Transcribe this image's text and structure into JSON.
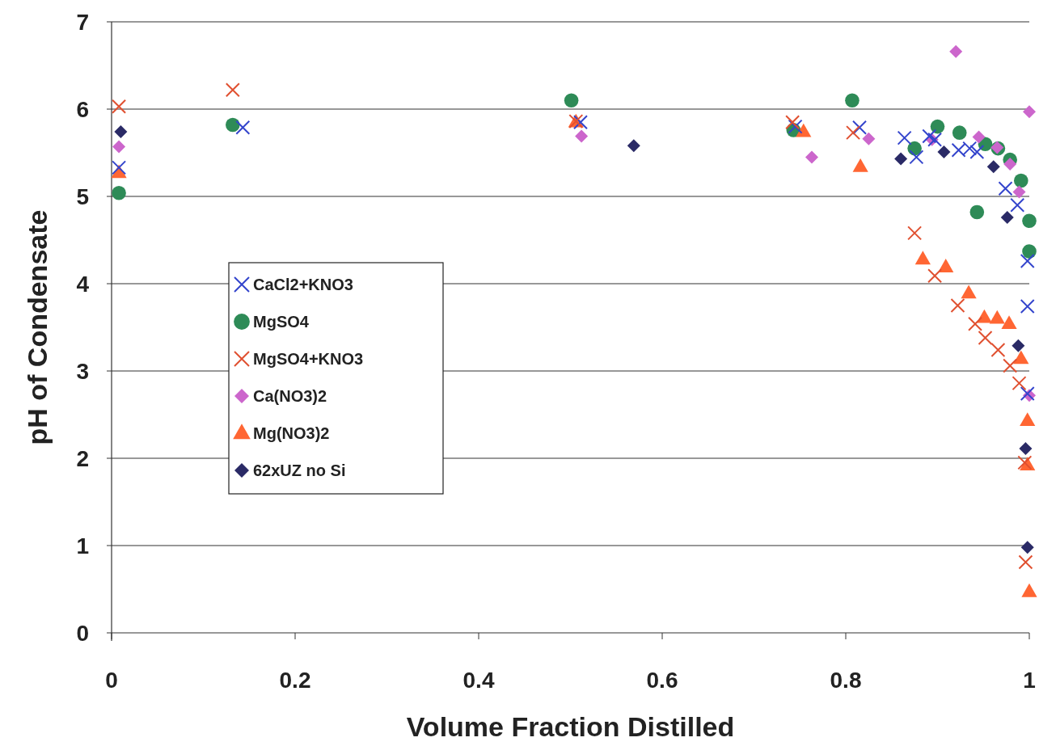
{
  "chart_data": {
    "type": "scatter",
    "xlabel": "Volume Fraction Distilled",
    "ylabel": "pH of Condensate",
    "xlim": [
      0,
      1
    ],
    "ylim": [
      0,
      7
    ],
    "xticks": [
      0,
      0.2,
      0.4,
      0.6,
      0.8,
      1
    ],
    "yticks": [
      0,
      1,
      2,
      3,
      4,
      5,
      6,
      7
    ],
    "grid": "y",
    "legend": "left",
    "series": [
      {
        "name": "CaCl2+KNO3",
        "color": "#3344cc",
        "marker": "cross",
        "x": [
          0.008,
          0.143,
          0.511,
          0.745,
          0.815,
          0.864,
          0.877,
          0.891,
          0.897,
          0.923,
          0.935,
          0.943,
          0.974,
          0.987,
          0.998,
          0.998,
          0.998
        ],
        "values": [
          5.33,
          5.79,
          5.85,
          5.8,
          5.79,
          5.67,
          5.45,
          5.69,
          5.65,
          5.53,
          5.55,
          5.51,
          5.09,
          4.9,
          4.26,
          3.74,
          2.74
        ]
      },
      {
        "name": "MgSO4",
        "color": "#2e8b57",
        "marker": "circle",
        "x": [
          0.008,
          0.132,
          0.501,
          0.743,
          0.807,
          0.875,
          0.9,
          0.924,
          0.952,
          0.966,
          0.979,
          0.991,
          0.943,
          1.0,
          1.0
        ],
        "values": [
          5.04,
          5.82,
          6.1,
          5.76,
          6.1,
          5.55,
          5.8,
          5.73,
          5.6,
          5.55,
          5.42,
          5.18,
          4.82,
          4.72,
          4.37
        ]
      },
      {
        "name": "MgSO4+KNO3",
        "color": "#e05030",
        "marker": "cross",
        "x": [
          0.008,
          0.132,
          0.506,
          0.742,
          0.808,
          0.875,
          0.897,
          0.922,
          0.941,
          0.952,
          0.966,
          0.979,
          0.989,
          0.995,
          0.996
        ],
        "values": [
          6.03,
          6.22,
          5.86,
          5.85,
          5.73,
          4.58,
          4.09,
          3.75,
          3.54,
          3.38,
          3.24,
          3.06,
          2.86,
          1.95,
          0.81
        ]
      },
      {
        "name": "Ca(NO3)2",
        "color": "#cc66cc",
        "marker": "diamond",
        "x": [
          0.008,
          0.512,
          0.763,
          0.825,
          0.92,
          0.894,
          0.945,
          0.965,
          0.979,
          0.989,
          1.0,
          1.0
        ],
        "values": [
          5.57,
          5.69,
          5.45,
          5.66,
          6.66,
          5.65,
          5.68,
          5.56,
          5.37,
          5.05,
          5.97,
          2.72
        ]
      },
      {
        "name": "Mg(NO3)2",
        "color": "#ff6633",
        "marker": "triangle",
        "x": [
          0.008,
          0.506,
          0.754,
          0.816,
          0.884,
          0.909,
          0.934,
          0.951,
          0.965,
          0.978,
          0.991,
          0.998,
          0.998,
          1.0
        ],
        "values": [
          5.27,
          5.85,
          5.74,
          5.34,
          4.28,
          4.19,
          3.89,
          3.61,
          3.6,
          3.54,
          3.14,
          2.43,
          1.92,
          0.47
        ]
      },
      {
        "name": "62xUZ no Si",
        "color": "#2a2a66",
        "marker": "diamond",
        "x": [
          0.01,
          0.569,
          0.86,
          0.907,
          0.961,
          0.976,
          0.988,
          0.996,
          0.998
        ],
        "values": [
          5.74,
          5.58,
          5.43,
          5.51,
          5.34,
          4.76,
          3.29,
          2.11,
          0.98
        ]
      }
    ]
  }
}
